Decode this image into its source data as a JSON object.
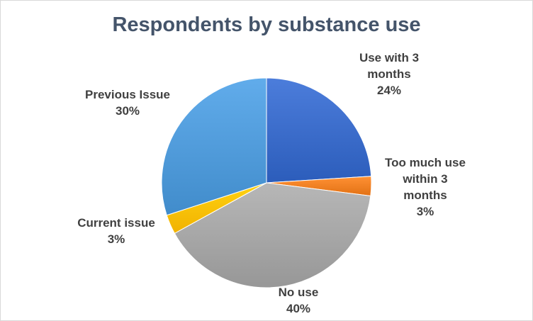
{
  "chart_data": {
    "type": "pie",
    "title": "Respondents by substance use",
    "start_angle_deg": 0,
    "direction": "clockwise",
    "slices": [
      {
        "name": "Use with 3 months",
        "value": 24,
        "label_lines": [
          "Use with 3",
          "months",
          "24%"
        ],
        "color": "#3a6bc9"
      },
      {
        "name": "Too much use within 3 months",
        "value": 3,
        "label_lines": [
          "Too much use",
          "within 3",
          "months",
          "3%"
        ],
        "color": "#f07f22"
      },
      {
        "name": "No use",
        "value": 40,
        "label_lines": [
          "No use",
          "40%"
        ],
        "color": "#a5a5a5"
      },
      {
        "name": "Current issue",
        "value": 3,
        "label_lines": [
          "Current issue",
          "3%"
        ],
        "color": "#ffc000"
      },
      {
        "name": "Previous Issue",
        "value": 30,
        "label_lines": [
          "Previous Issue",
          "30%"
        ],
        "color": "#4f9ad9"
      }
    ]
  }
}
